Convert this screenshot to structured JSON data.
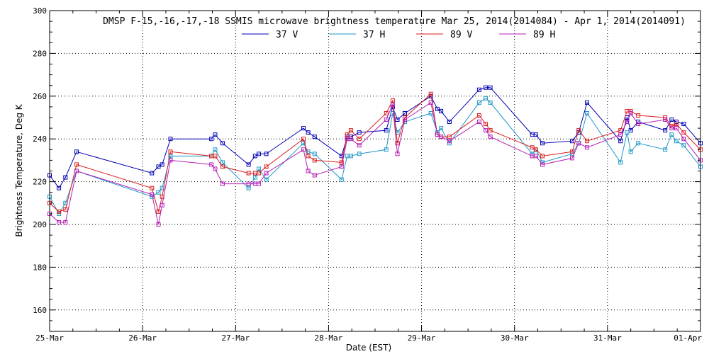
{
  "chart_data": {
    "type": "line",
    "title": "DMSP F-15,-16,-17,-18 SSMIS microwave brightness temperature Mar 25, 2014(2014084) - Apr  1, 2014(2014091)",
    "xlabel": "Date (EST)",
    "ylabel": "Brightness Temperature, Deg K",
    "xlim": [
      0,
      7
    ],
    "ylim": [
      150,
      300
    ],
    "yticks": [
      160,
      180,
      200,
      220,
      240,
      260,
      280,
      300
    ],
    "xticks": [
      0,
      1,
      2,
      3,
      4,
      5,
      6,
      7
    ],
    "xtick_labels": [
      "25-Mar",
      "26-Mar",
      "27-Mar",
      "28-Mar",
      "29-Mar",
      "30-Mar",
      "31-Mar",
      "01-Apr"
    ],
    "grid": true,
    "legend_position": "top-center",
    "series": [
      {
        "name": "37 V",
        "color": "#0000b4",
        "points": [
          [
            0.0,
            223
          ],
          [
            0.1,
            217
          ],
          [
            0.17,
            222
          ],
          [
            0.29,
            234
          ],
          [
            1.1,
            224
          ],
          [
            1.17,
            227
          ],
          [
            1.21,
            228
          ],
          [
            1.3,
            240
          ],
          [
            1.74,
            240
          ],
          [
            1.78,
            242
          ],
          [
            1.86,
            238
          ],
          [
            2.14,
            228
          ],
          [
            2.21,
            232
          ],
          [
            2.25,
            233
          ],
          [
            2.33,
            233
          ],
          [
            2.73,
            245
          ],
          [
            2.78,
            243
          ],
          [
            2.85,
            241
          ],
          [
            3.14,
            232
          ],
          [
            3.2,
            241
          ],
          [
            3.24,
            241
          ],
          [
            3.33,
            243
          ],
          [
            3.62,
            244
          ],
          [
            3.69,
            255
          ],
          [
            3.74,
            249
          ],
          [
            3.82,
            252
          ],
          [
            4.1,
            260
          ],
          [
            4.17,
            254
          ],
          [
            4.21,
            253
          ],
          [
            4.3,
            248
          ],
          [
            4.62,
            263
          ],
          [
            4.69,
            264
          ],
          [
            4.74,
            264
          ],
          [
            5.19,
            242
          ],
          [
            5.23,
            242
          ],
          [
            5.3,
            238
          ],
          [
            5.62,
            239
          ],
          [
            5.69,
            243
          ],
          [
            5.78,
            257
          ],
          [
            6.14,
            239
          ],
          [
            6.21,
            250
          ],
          [
            6.25,
            244
          ],
          [
            6.33,
            248
          ],
          [
            6.62,
            244
          ],
          [
            6.69,
            249
          ],
          [
            6.74,
            248
          ],
          [
            6.82,
            247
          ],
          [
            7.0,
            238
          ]
        ]
      },
      {
        "name": "37 H",
        "color": "#1e96c8",
        "points": [
          [
            0.0,
            213
          ],
          [
            0.1,
            205
          ],
          [
            0.17,
            210
          ],
          [
            0.29,
            225
          ],
          [
            1.1,
            213
          ],
          [
            1.17,
            215
          ],
          [
            1.21,
            217
          ],
          [
            1.3,
            232
          ],
          [
            1.74,
            232
          ],
          [
            1.78,
            235
          ],
          [
            1.86,
            229
          ],
          [
            2.14,
            217
          ],
          [
            2.21,
            222
          ],
          [
            2.25,
            226
          ],
          [
            2.33,
            221
          ],
          [
            2.73,
            238
          ],
          [
            2.78,
            234
          ],
          [
            2.85,
            233
          ],
          [
            3.14,
            221
          ],
          [
            3.2,
            232
          ],
          [
            3.24,
            232
          ],
          [
            3.33,
            233
          ],
          [
            3.62,
            235
          ],
          [
            3.69,
            252
          ],
          [
            3.74,
            243
          ],
          [
            3.82,
            248
          ],
          [
            4.1,
            252
          ],
          [
            4.17,
            243
          ],
          [
            4.21,
            245
          ],
          [
            4.3,
            238
          ],
          [
            4.62,
            257
          ],
          [
            4.69,
            259
          ],
          [
            4.74,
            257
          ],
          [
            5.19,
            233
          ],
          [
            5.23,
            235
          ],
          [
            5.3,
            229
          ],
          [
            5.62,
            233
          ],
          [
            5.69,
            238
          ],
          [
            5.78,
            252
          ],
          [
            6.14,
            229
          ],
          [
            6.21,
            243
          ],
          [
            6.25,
            234
          ],
          [
            6.33,
            238
          ],
          [
            6.62,
            235
          ],
          [
            6.69,
            242
          ],
          [
            6.74,
            239
          ],
          [
            6.82,
            237
          ],
          [
            7.0,
            227
          ]
        ]
      },
      {
        "name": "89 V",
        "color": "#dc1e1e",
        "points": [
          [
            0.0,
            210
          ],
          [
            0.1,
            206
          ],
          [
            0.17,
            207
          ],
          [
            0.29,
            228
          ],
          [
            1.1,
            217
          ],
          [
            1.17,
            206
          ],
          [
            1.21,
            213
          ],
          [
            1.3,
            234
          ],
          [
            1.74,
            232
          ],
          [
            1.78,
            232
          ],
          [
            1.86,
            227
          ],
          [
            2.14,
            224
          ],
          [
            2.21,
            224
          ],
          [
            2.25,
            224
          ],
          [
            2.33,
            227
          ],
          [
            2.73,
            240
          ],
          [
            2.78,
            232
          ],
          [
            2.85,
            230
          ],
          [
            3.14,
            229
          ],
          [
            3.2,
            242
          ],
          [
            3.24,
            244
          ],
          [
            3.33,
            240
          ],
          [
            3.62,
            252
          ],
          [
            3.69,
            258
          ],
          [
            3.74,
            238
          ],
          [
            3.82,
            250
          ],
          [
            4.1,
            261
          ],
          [
            4.17,
            242
          ],
          [
            4.21,
            241
          ],
          [
            4.3,
            241
          ],
          [
            4.62,
            251
          ],
          [
            4.69,
            247
          ],
          [
            4.74,
            244
          ],
          [
            5.19,
            236
          ],
          [
            5.23,
            235
          ],
          [
            5.3,
            232
          ],
          [
            5.62,
            234
          ],
          [
            5.69,
            244
          ],
          [
            5.78,
            239
          ],
          [
            6.14,
            244
          ],
          [
            6.21,
            253
          ],
          [
            6.25,
            253
          ],
          [
            6.33,
            251
          ],
          [
            6.62,
            250
          ],
          [
            6.69,
            246
          ],
          [
            6.74,
            247
          ],
          [
            6.82,
            243
          ],
          [
            7.0,
            235
          ]
        ]
      },
      {
        "name": "89 H",
        "color": "#b41eb4",
        "points": [
          [
            0.0,
            205
          ],
          [
            0.1,
            201
          ],
          [
            0.17,
            201
          ],
          [
            0.29,
            225
          ],
          [
            1.1,
            214
          ],
          [
            1.17,
            200
          ],
          [
            1.21,
            209
          ],
          [
            1.3,
            230
          ],
          [
            1.74,
            228
          ],
          [
            1.78,
            226
          ],
          [
            1.86,
            219
          ],
          [
            2.14,
            219
          ],
          [
            2.21,
            219
          ],
          [
            2.25,
            219
          ],
          [
            2.33,
            224
          ],
          [
            2.73,
            235
          ],
          [
            2.78,
            225
          ],
          [
            2.85,
            223
          ],
          [
            3.14,
            227
          ],
          [
            3.2,
            240
          ],
          [
            3.24,
            240
          ],
          [
            3.33,
            237
          ],
          [
            3.62,
            249
          ],
          [
            3.69,
            256
          ],
          [
            3.74,
            233
          ],
          [
            3.82,
            249
          ],
          [
            4.1,
            257
          ],
          [
            4.17,
            242
          ],
          [
            4.21,
            241
          ],
          [
            4.3,
            239
          ],
          [
            4.62,
            248
          ],
          [
            4.69,
            244
          ],
          [
            4.74,
            241
          ],
          [
            5.19,
            232
          ],
          [
            5.23,
            232
          ],
          [
            5.3,
            228
          ],
          [
            5.62,
            231
          ],
          [
            5.69,
            238
          ],
          [
            5.78,
            236
          ],
          [
            6.14,
            242
          ],
          [
            6.21,
            248
          ],
          [
            6.25,
            252
          ],
          [
            6.33,
            247
          ],
          [
            6.62,
            249
          ],
          [
            6.69,
            245
          ],
          [
            6.74,
            245
          ],
          [
            6.82,
            240
          ],
          [
            7.0,
            230
          ]
        ]
      }
    ]
  }
}
